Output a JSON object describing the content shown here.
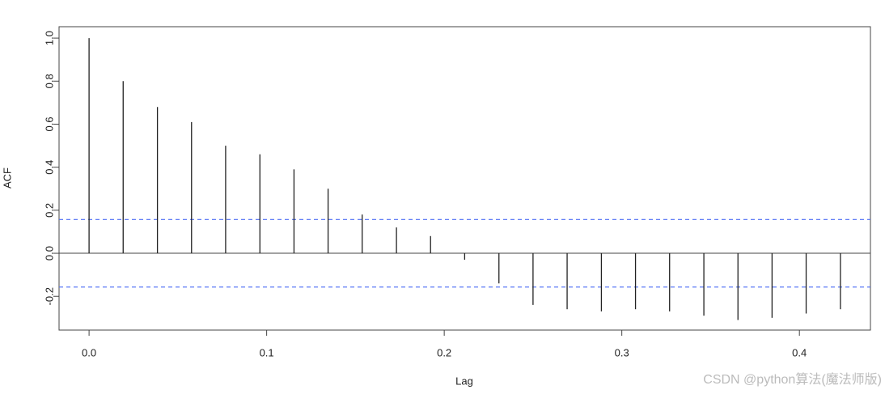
{
  "chart_data": {
    "type": "acf",
    "x_label": "Lag",
    "y_label": "ACF",
    "x": [
      0,
      0.0192,
      0.0385,
      0.0577,
      0.0769,
      0.0962,
      0.1154,
      0.1346,
      0.1538,
      0.1731,
      0.1923,
      0.2115,
      0.2308,
      0.25,
      0.2692,
      0.2885,
      0.3077,
      0.3269,
      0.3462,
      0.3654,
      0.3846,
      0.4038,
      0.4231
    ],
    "values": [
      1.0,
      0.8,
      0.68,
      0.61,
      0.5,
      0.46,
      0.39,
      0.3,
      0.18,
      0.12,
      0.08,
      -0.03,
      -0.14,
      -0.24,
      -0.26,
      -0.27,
      -0.26,
      -0.27,
      -0.29,
      -0.31,
      -0.3,
      -0.28,
      -0.26
    ],
    "color": "#222222",
    "conf_limits": [
      0.157,
      -0.157
    ],
    "conf_color": "#4f6ff5",
    "xlim": [
      -0.0169,
      0.44
    ],
    "ylim": [
      -0.357,
      1.053
    ],
    "xticks": [
      {
        "value": 0,
        "label": "0.0"
      },
      0.1,
      0.2,
      0.3,
      0.4
    ],
    "yticks": [
      -0.2,
      {
        "value": 0,
        "label": "0.0"
      },
      0.2,
      0.4,
      0.6,
      0.8,
      {
        "value": 1,
        "label": "1.0"
      }
    ],
    "watermark": "CSDN @python算法(魔法师版)"
  }
}
